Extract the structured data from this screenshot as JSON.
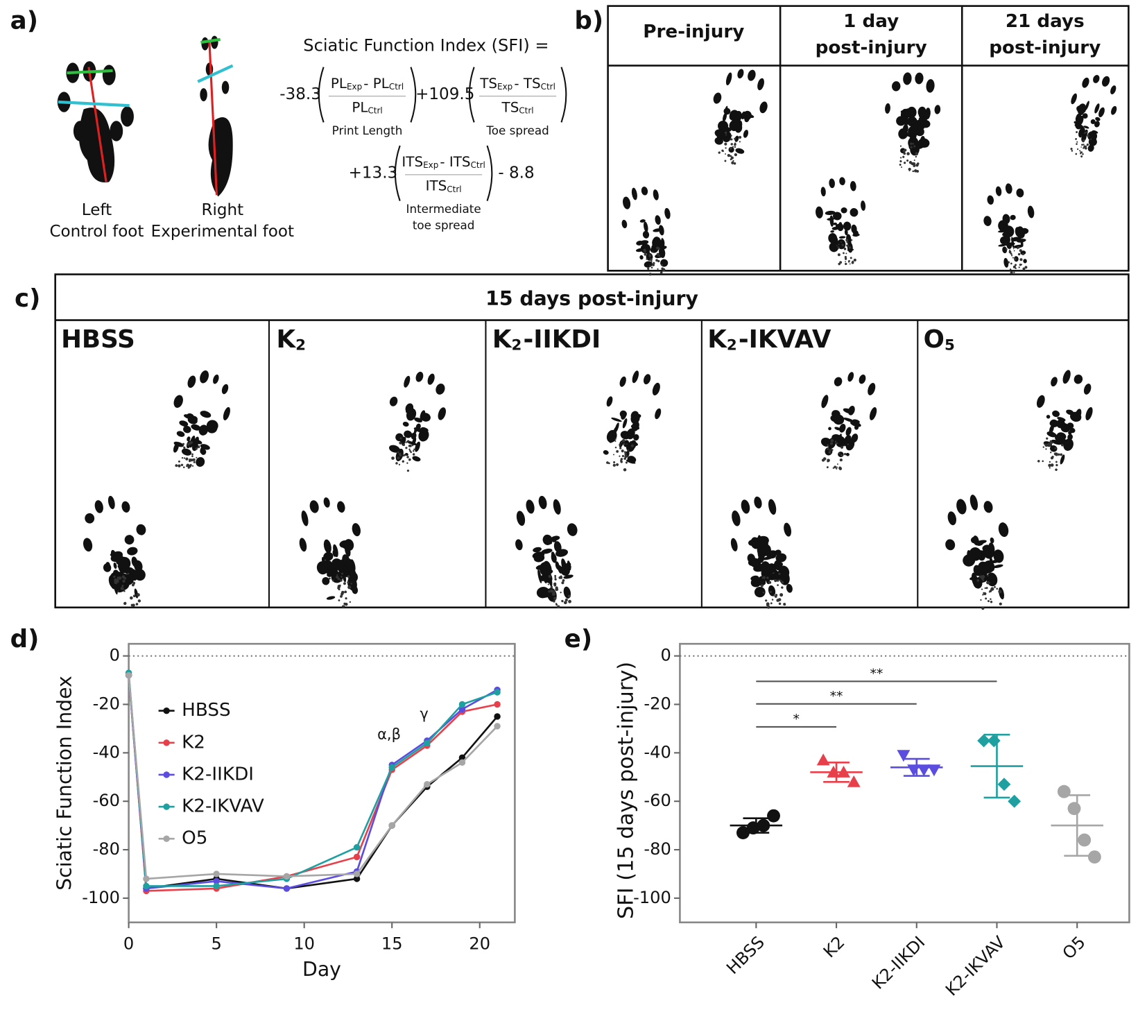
{
  "panel_a": {
    "label": "a)",
    "feet": [
      {
        "lines": [
          "Left",
          "Control foot"
        ]
      },
      {
        "lines": [
          "Right",
          "Experimental foot"
        ]
      }
    ],
    "formula": {
      "title": "Sciatic Function Index (SFI) =",
      "terms": [
        {
          "coef": "-38.3",
          "numerator": [
            "PL",
            "Exp",
            "- PL",
            "Ctrl"
          ],
          "denominator": [
            "PL",
            "Ctrl"
          ],
          "caption": [
            "Print Length"
          ],
          "color": "#d9343c"
        },
        {
          "coef": "+109.5",
          "numerator": [
            "TS",
            "Exp",
            "- TS",
            "Ctrl"
          ],
          "denominator": [
            "TS",
            "Ctrl"
          ],
          "caption": [
            "Toe spread"
          ],
          "color": "#1aa6b4"
        },
        {
          "coef": "+13.3",
          "numerator": [
            "ITS",
            "Exp",
            "- ITS",
            "Ctrl"
          ],
          "denominator": [
            "ITS",
            "Ctrl"
          ],
          "caption": [
            "Intermediate",
            "toe spread"
          ],
          "color": "#2fbf3a"
        }
      ],
      "constant": "- 8.8"
    }
  },
  "panel_b": {
    "label": "b)",
    "columns": [
      [
        "Pre-injury"
      ],
      [
        "1 day",
        "post-injury"
      ],
      [
        "21 days",
        "post-injury"
      ]
    ]
  },
  "panel_c": {
    "label": "c)",
    "title": "15 days post-injury",
    "columns": [
      [
        "HBSS"
      ],
      [
        "K",
        "2"
      ],
      [
        "K",
        "2",
        "-IIKDI"
      ],
      [
        "K",
        "2",
        "-IKVAV"
      ],
      [
        "O",
        "5"
      ]
    ]
  },
  "chart_data": [
    {
      "type": "line",
      "panel_label": "d)",
      "x_label": "Day",
      "y_label": "Sciatic Function Index",
      "x": [
        0,
        1,
        5,
        9,
        13,
        15,
        17,
        19,
        21
      ],
      "series": [
        {
          "name": "HBSS",
          "color": "#111111",
          "values": [
            -8,
            -96,
            -92,
            -96,
            -92,
            -70,
            -54,
            -42,
            -25
          ]
        },
        {
          "name": "K2",
          "color": "#e8404a",
          "values": [
            -8,
            -97,
            -96,
            -91,
            -83,
            -47,
            -37,
            -23,
            -20
          ]
        },
        {
          "name": "K2-IIKDI",
          "color": "#5a4de0",
          "values": [
            -8,
            -96,
            -93,
            -96,
            -89,
            -45,
            -35,
            -22,
            -14
          ]
        },
        {
          "name": "K2-IKVAV",
          "color": "#1fa0a0",
          "values": [
            -7,
            -95,
            -95,
            -92,
            -79,
            -46,
            -36,
            -20,
            -15
          ]
        },
        {
          "name": "O5",
          "color": "#a6a6a6",
          "values": [
            -8,
            -92,
            -90,
            -91,
            -90,
            -70,
            -53,
            -44,
            -29
          ]
        }
      ],
      "annotations": [
        {
          "text": "α,β",
          "x": 15
        },
        {
          "text": "γ",
          "x": 17
        }
      ],
      "xlim": [
        0,
        22
      ],
      "xticks": [
        0,
        5,
        10,
        15,
        20
      ],
      "ylim": [
        -110,
        5
      ],
      "yticks": [
        0,
        -20,
        -40,
        -60,
        -80,
        -100
      ],
      "zero_line": true
    },
    {
      "type": "strip",
      "panel_label": "e)",
      "y_label": "SFI (15 days post-injury)",
      "categories": [
        "HBSS",
        "K2",
        "K2-IIKDI",
        "K2-IKVAV",
        "O5"
      ],
      "series": [
        {
          "color": "#111111",
          "marker": "circle",
          "values": [
            -73,
            -71,
            -70,
            -66
          ],
          "mean": -70,
          "sd": 3
        },
        {
          "color": "#e8404a",
          "marker": "triangle-up",
          "values": [
            -43,
            -48,
            -48,
            -52
          ],
          "mean": -48,
          "sd": 4
        },
        {
          "color": "#5a4de0",
          "marker": "triangle-down",
          "values": [
            -41,
            -47,
            -47,
            -47
          ],
          "mean": -46,
          "sd": 3.5
        },
        {
          "color": "#1fa0a0",
          "marker": "diamond",
          "values": [
            -35,
            -35,
            -53,
            -60
          ],
          "mean": -45.5,
          "sd": 13
        },
        {
          "color": "#a6a6a6",
          "marker": "circle",
          "values": [
            -56,
            -63,
            -76,
            -83
          ],
          "mean": -70,
          "sd": 12.5
        }
      ],
      "significance": [
        {
          "from": "HBSS",
          "to": "K2",
          "label": "*"
        },
        {
          "from": "HBSS",
          "to": "K2-IIKDI",
          "label": "**"
        },
        {
          "from": "HBSS",
          "to": "K2-IKVAV",
          "label": "**"
        }
      ],
      "ylim": [
        -110,
        5
      ],
      "yticks": [
        0,
        -20,
        -40,
        -60,
        -80,
        -100
      ],
      "zero_line": true
    }
  ]
}
